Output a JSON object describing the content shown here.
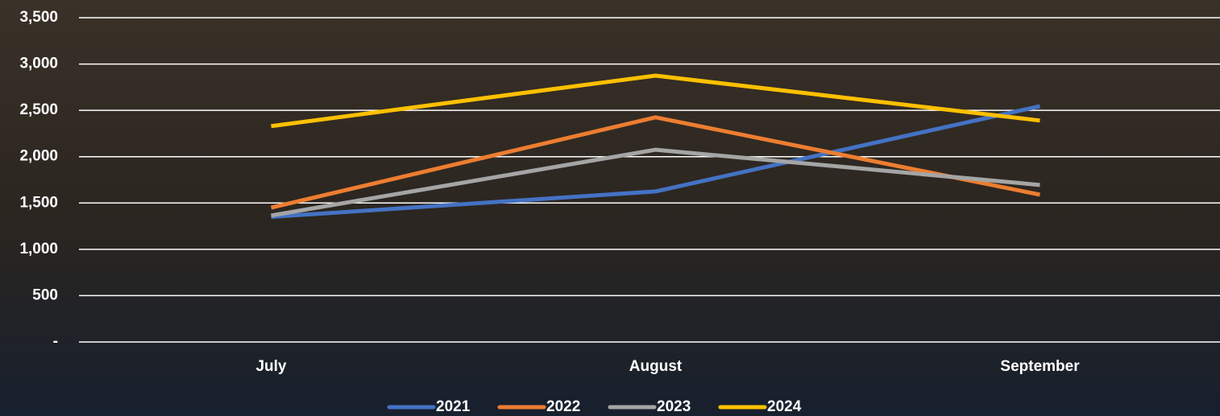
{
  "chart_data": {
    "type": "line",
    "categories": [
      "July",
      "August",
      "September"
    ],
    "series": [
      {
        "name": "2021",
        "color": "#4472c4",
        "values": [
          1350,
          1625,
          2545
        ]
      },
      {
        "name": "2022",
        "color": "#ed7d31",
        "values": [
          1450,
          2425,
          1590
        ]
      },
      {
        "name": "2023",
        "color": "#a5a5a5",
        "values": [
          1365,
          2075,
          1695
        ]
      },
      {
        "name": "2024",
        "color": "#ffc000",
        "values": [
          2330,
          2875,
          2390
        ]
      }
    ],
    "ylim": [
      0,
      3500
    ],
    "yticks": [
      {
        "value": 0,
        "label": "-"
      },
      500,
      {
        "value": 1000,
        "label": "1,000"
      },
      {
        "value": 1500,
        "label": "1,500"
      },
      {
        "value": 2000,
        "label": "2,000"
      },
      {
        "value": 2500,
        "label": "2,500"
      },
      {
        "value": 3000,
        "label": "3,000"
      },
      {
        "value": 3500,
        "label": "3,500"
      }
    ],
    "grid": true,
    "legend": "bottom"
  }
}
